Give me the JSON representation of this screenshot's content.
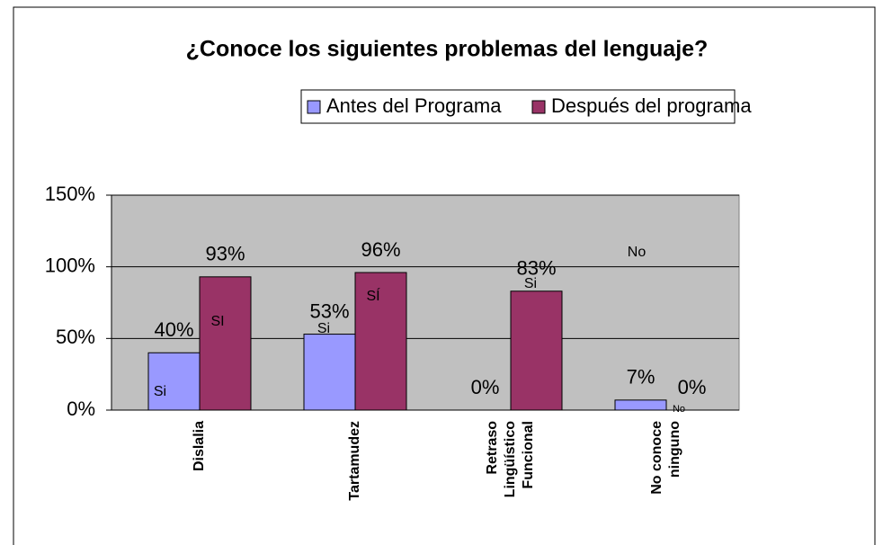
{
  "chart_data": {
    "type": "bar",
    "title": "¿Conoce los siguientes problemas del lenguaje?",
    "categories": [
      "Dislalia",
      "Tartamudez",
      "Retraso\nLingüístico\nFuncional",
      "No conoce\nninguno"
    ],
    "series": [
      {
        "name": "Antes del Programa",
        "color": "#9999ff",
        "values": [
          40,
          53,
          0,
          7
        ],
        "value_labels": [
          "40%",
          "53%",
          "0%",
          "7%"
        ]
      },
      {
        "name": "Después del programa",
        "color": "#993366",
        "values": [
          93,
          96,
          83,
          0
        ],
        "value_labels": [
          "93%",
          "96%",
          "83%",
          "0%"
        ]
      }
    ],
    "annotations": [
      "Si",
      "SI",
      "Si",
      "SÍ",
      "Si",
      "No",
      "No"
    ],
    "ylim": [
      0,
      150
    ],
    "yticks": [
      {
        "value": 0,
        "label": "0%"
      },
      {
        "value": 50,
        "label": "50%"
      },
      {
        "value": 100,
        "label": "100%"
      },
      {
        "value": 150,
        "label": "150%"
      }
    ],
    "grid": true,
    "legend": "top"
  }
}
